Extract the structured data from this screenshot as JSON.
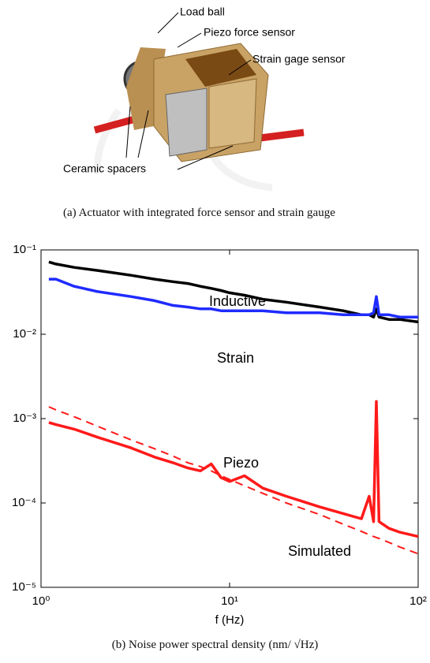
{
  "photo": {
    "labels": [
      "Load ball",
      "Piezo force sensor",
      "Strain gage sensor",
      "Ceramic spacers"
    ],
    "caption": "(a) Actuator with integrated force sensor and strain gauge"
  },
  "chart_data": {
    "type": "line",
    "log_x": true,
    "log_y": true,
    "xlabel": "f (Hz)",
    "caption": "(b) Noise power spectral density (nm/ √Hz)",
    "x": [
      1.1,
      1.2,
      1.5,
      2,
      3,
      4,
      5,
      6,
      7,
      8,
      9,
      10,
      12,
      15,
      20,
      30,
      40,
      50,
      55,
      58,
      60,
      62,
      70,
      80,
      100
    ],
    "series": [
      {
        "name": "Inductive",
        "color": "#000000",
        "dashed": false,
        "values": [
          0.072,
          0.068,
          0.062,
          0.057,
          0.05,
          0.045,
          0.042,
          0.04,
          0.037,
          0.035,
          0.033,
          0.031,
          0.029,
          0.026,
          0.024,
          0.021,
          0.019,
          0.017,
          0.017,
          0.016,
          0.02,
          0.016,
          0.015,
          0.015,
          0.014
        ]
      },
      {
        "name": "Strain",
        "color": "#1f2bff",
        "dashed": false,
        "values": [
          0.045,
          0.045,
          0.037,
          0.032,
          0.028,
          0.025,
          0.022,
          0.021,
          0.02,
          0.02,
          0.019,
          0.019,
          0.019,
          0.019,
          0.018,
          0.018,
          0.017,
          0.017,
          0.017,
          0.018,
          0.028,
          0.017,
          0.017,
          0.016,
          0.016
        ]
      },
      {
        "name": "Piezo",
        "color": "#ff1a1a",
        "dashed": false,
        "values": [
          0.0009,
          0.00085,
          0.00075,
          0.0006,
          0.00045,
          0.00035,
          0.0003,
          0.00026,
          0.00024,
          0.00029,
          0.0002,
          0.00018,
          0.00021,
          0.00015,
          0.00012,
          9e-05,
          7.5e-05,
          6.5e-05,
          0.00012,
          6e-05,
          0.0016,
          6e-05,
          5e-05,
          4.5e-05,
          4e-05
        ]
      },
      {
        "name": "Simulated",
        "color": "#ff1a1a",
        "dashed": true,
        "values": [
          0.00138,
          0.00127,
          0.00105,
          0.00081,
          0.00056,
          0.00044,
          0.00036,
          0.0003,
          0.00027,
          0.00024,
          0.00021,
          0.00019,
          0.00016,
          0.00013,
          0.0001,
          7.3e-05,
          5.6e-05,
          4.6e-05,
          4.2e-05,
          4e-05,
          3.9e-05,
          3.8e-05,
          3.4e-05,
          3e-05,
          2.5e-05
        ]
      }
    ],
    "xlim": [
      1,
      100
    ],
    "ylim": [
      1e-05,
      0.1
    ],
    "xticks": [
      {
        "value": 1,
        "label": "10⁰"
      },
      {
        "value": 10,
        "label": "10¹"
      },
      {
        "value": 100,
        "label": "10²"
      }
    ],
    "yticks": [
      {
        "value": 1e-05,
        "label": "10⁻⁵"
      },
      {
        "value": 0.0001,
        "label": "10⁻⁴"
      },
      {
        "value": 0.001,
        "label": "10⁻³"
      },
      {
        "value": 0.01,
        "label": "10⁻²"
      },
      {
        "value": 0.1,
        "label": "10⁻¹"
      }
    ]
  }
}
